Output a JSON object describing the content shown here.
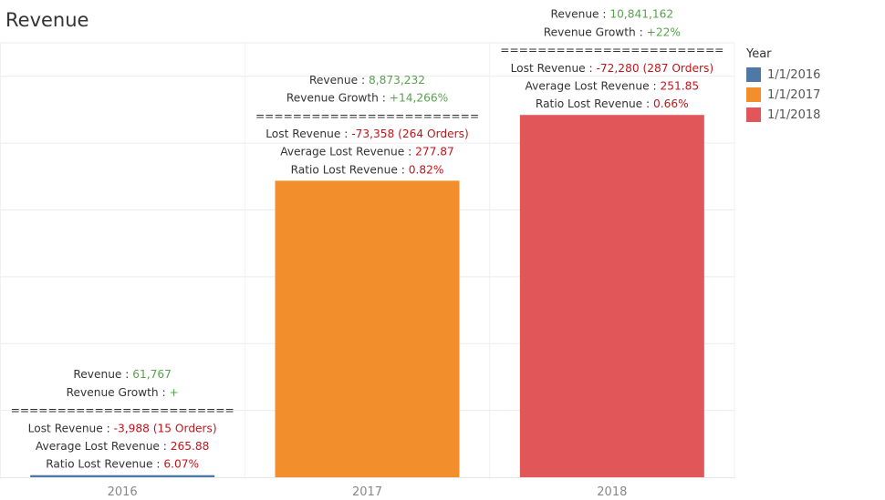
{
  "title": "Revenue",
  "legend": {
    "title": "Year",
    "items": [
      {
        "label": "1/1/2016",
        "color": "#4e79a7"
      },
      {
        "label": "1/1/2017",
        "color": "#f28e2b"
      },
      {
        "label": "1/1/2018",
        "color": "#e15759"
      }
    ]
  },
  "colors": {
    "positive": "#59a14f",
    "negative": "#c0161b",
    "text": "#333333"
  },
  "chart_data": {
    "type": "bar",
    "categories": [
      "2016",
      "2017",
      "2018"
    ],
    "values": [
      61767,
      8873232,
      10841162
    ],
    "ylim": [
      0,
      13000000
    ],
    "grid": true,
    "legend_position": "right",
    "annotations": [
      {
        "lines": [
          {
            "label": "Revenue : ",
            "value": "61,767",
            "tone": "positive"
          },
          {
            "label": "Revenue Growth : ",
            "value": "+",
            "tone": "positive"
          },
          {
            "label": "========================",
            "value": "",
            "tone": "text"
          },
          {
            "label": "Lost Revenue : ",
            "value": "-3,988 (15 Orders)",
            "tone": "negative"
          },
          {
            "label": "Average Lost Revenue : ",
            "value": "265.88",
            "tone": "negative"
          },
          {
            "label": "Ratio Lost Revenue : ",
            "value": "6.07%",
            "tone": "negative"
          }
        ]
      },
      {
        "lines": [
          {
            "label": "Revenue : ",
            "value": "8,873,232",
            "tone": "positive"
          },
          {
            "label": "Revenue Growth : ",
            "value": "+14,266%",
            "tone": "positive"
          },
          {
            "label": "========================",
            "value": "",
            "tone": "text"
          },
          {
            "label": "Lost Revenue : ",
            "value": "-73,358 (264 Orders)",
            "tone": "negative"
          },
          {
            "label": "Average Lost Revenue : ",
            "value": "277.87",
            "tone": "negative"
          },
          {
            "label": "Ratio Lost Revenue : ",
            "value": "0.82%",
            "tone": "negative"
          }
        ]
      },
      {
        "lines": [
          {
            "label": "Revenue : ",
            "value": "10,841,162",
            "tone": "positive"
          },
          {
            "label": "Revenue Growth : ",
            "value": "+22%",
            "tone": "positive"
          },
          {
            "label": "========================",
            "value": "",
            "tone": "text"
          },
          {
            "label": "Lost Revenue : ",
            "value": "-72,280 (287 Orders)",
            "tone": "negative"
          },
          {
            "label": "Average Lost Revenue : ",
            "value": "251.85",
            "tone": "negative"
          },
          {
            "label": "Ratio Lost Revenue : ",
            "value": "0.66%",
            "tone": "negative"
          }
        ]
      }
    ]
  }
}
